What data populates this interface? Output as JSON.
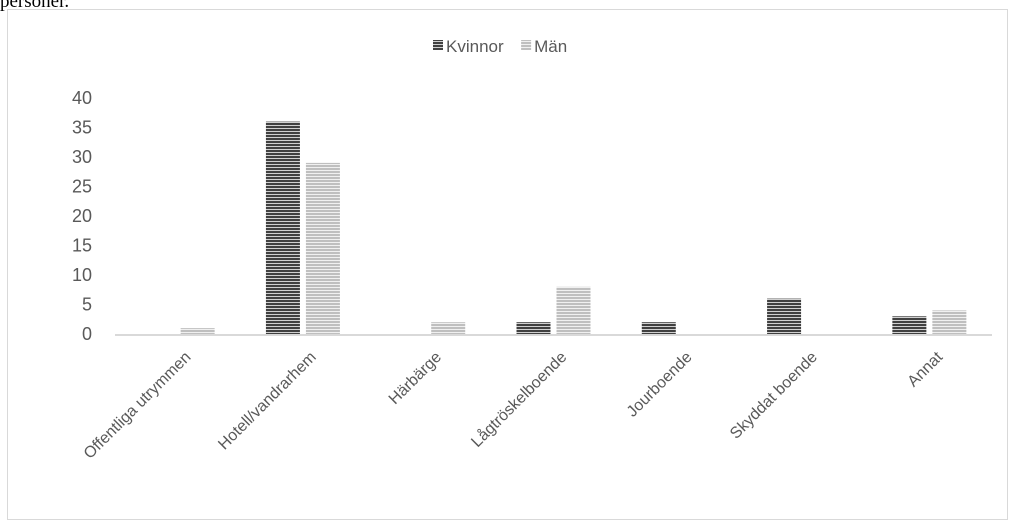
{
  "page": {
    "caption": "personer."
  },
  "chart_data": {
    "type": "bar",
    "title": "",
    "xlabel": "",
    "ylabel": "",
    "ylim": [
      0,
      40
    ],
    "yticks": [
      0,
      5,
      10,
      15,
      20,
      25,
      30,
      35,
      40
    ],
    "grid": false,
    "legend": "top-center",
    "categories": [
      "Offentliga utrymmen",
      "Hotell/vandrarhem",
      "Härbärge",
      "Lågtröskelboende",
      "Jourboende",
      "Skyddat boende",
      "Annat"
    ],
    "series": [
      {
        "name": "Kvinnor",
        "color": "#404040",
        "values": [
          0,
          36,
          0,
          2,
          2,
          6,
          3
        ]
      },
      {
        "name": "Män",
        "color": "#bfbfbf",
        "values": [
          1,
          29,
          2,
          8,
          0,
          0,
          4
        ]
      }
    ]
  }
}
